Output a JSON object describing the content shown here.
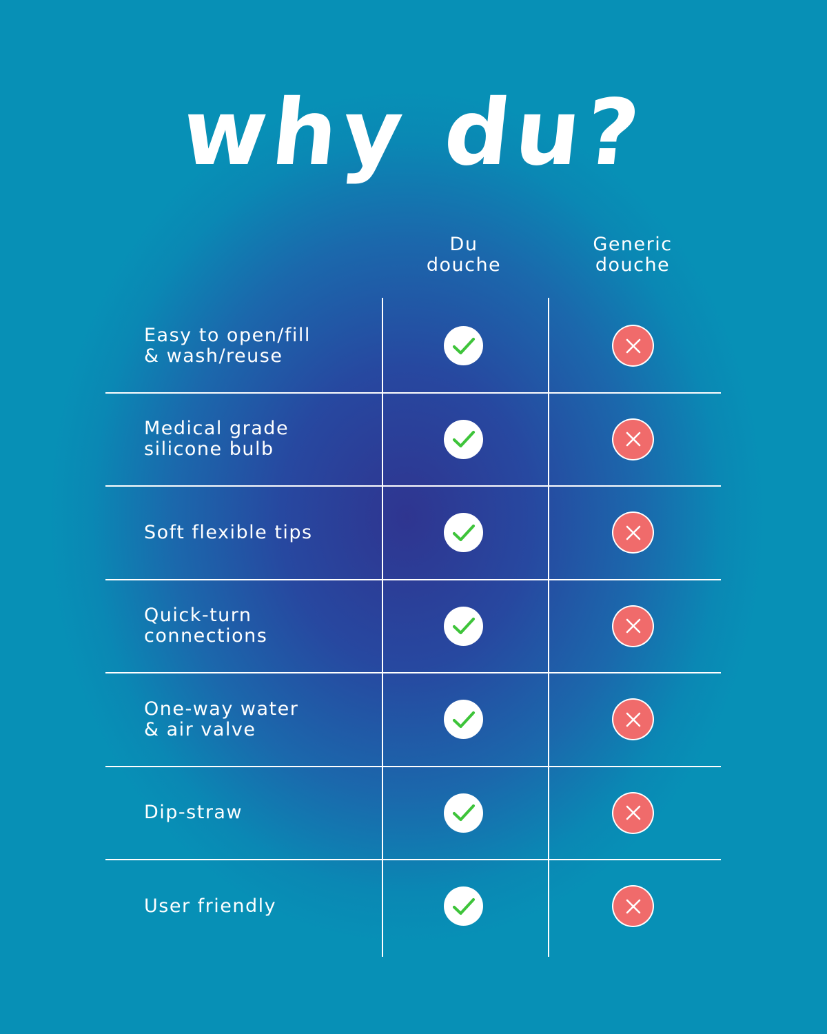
{
  "title": "why du?",
  "columns": {
    "du": "Du\ndouche",
    "generic": "Generic\ndouche"
  },
  "rows": [
    {
      "feature": "Easy to open/fill\n& wash/reuse",
      "du": "yes",
      "generic": "no"
    },
    {
      "feature": "Medical grade\nsilicone bulb",
      "du": "yes",
      "generic": "no"
    },
    {
      "feature": "Soft flexible tips",
      "du": "yes",
      "generic": "no"
    },
    {
      "feature": "Quick-turn\nconnections",
      "du": "yes",
      "generic": "no"
    },
    {
      "feature": "One-way water\n& air valve",
      "du": "yes",
      "generic": "no"
    },
    {
      "feature": "Dip-straw",
      "du": "yes",
      "generic": "no"
    },
    {
      "feature": "User friendly",
      "du": "yes",
      "generic": "no"
    }
  ],
  "colors": {
    "check": "#3ec43a",
    "cross_bg": "#f06b6b"
  },
  "icons": {
    "yes": "check-icon",
    "no": "cross-icon"
  }
}
